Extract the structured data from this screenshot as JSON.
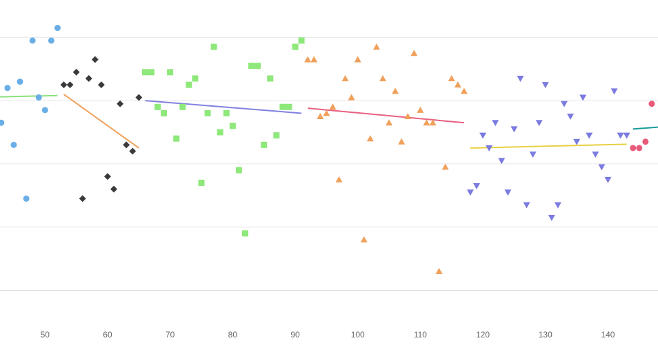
{
  "chart_data": {
    "type": "scatter",
    "title": "",
    "xlabel": "",
    "ylabel": "",
    "xlim": [
      42.8,
      148
    ],
    "ylim": [
      -55,
      445
    ],
    "x_ticks": [
      "50",
      "60",
      "70",
      "80",
      "90",
      "100",
      "110",
      "120",
      "130",
      "140"
    ],
    "y_gridlines": [
      0,
      100,
      200,
      300,
      400
    ],
    "grid": true,
    "legend": "none",
    "series": [
      {
        "shape": "circle",
        "color": "#6aaee8",
        "points": [
          [
            43,
            265
          ],
          [
            44,
            320
          ],
          [
            45,
            230
          ],
          [
            46,
            330
          ],
          [
            47,
            145
          ],
          [
            48,
            395
          ],
          [
            49,
            305
          ],
          [
            50,
            285
          ],
          [
            51,
            395
          ],
          [
            52,
            415
          ]
        ],
        "trend": {
          "color": "#8be07a",
          "from": [
            42.8,
            306
          ],
          "to": [
            52,
            308
          ]
        }
      },
      {
        "shape": "diamond",
        "color": "#3a3a3a",
        "points": [
          [
            53,
            325
          ],
          [
            54,
            325
          ],
          [
            55,
            345
          ],
          [
            56,
            145
          ],
          [
            57,
            335
          ],
          [
            58,
            365
          ],
          [
            59,
            325
          ],
          [
            60,
            180
          ],
          [
            61,
            160
          ],
          [
            62,
            295
          ],
          [
            63,
            230
          ],
          [
            64,
            220
          ],
          [
            65,
            305
          ]
        ],
        "trend": {
          "color": "#f0a05a",
          "from": [
            53,
            310
          ],
          "to": [
            65,
            225
          ]
        }
      },
      {
        "shape": "square",
        "color": "#8ee87a",
        "points": [
          [
            66,
            345
          ],
          [
            67,
            345
          ],
          [
            68,
            290
          ],
          [
            69,
            280
          ],
          [
            70,
            345
          ],
          [
            71,
            240
          ],
          [
            72,
            290
          ],
          [
            73,
            325
          ],
          [
            74,
            335
          ],
          [
            75,
            170
          ],
          [
            76,
            280
          ],
          [
            77,
            385
          ],
          [
            78,
            250
          ],
          [
            79,
            280
          ],
          [
            80,
            260
          ],
          [
            81,
            190
          ],
          [
            82,
            90
          ],
          [
            83,
            355
          ],
          [
            84,
            355
          ],
          [
            85,
            230
          ],
          [
            86,
            335
          ],
          [
            87,
            245
          ],
          [
            88,
            290
          ],
          [
            89,
            290
          ],
          [
            90,
            385
          ],
          [
            91,
            395
          ]
        ],
        "trend": {
          "color": "#8080e0",
          "from": [
            66,
            300
          ],
          "to": [
            91,
            280
          ]
        }
      },
      {
        "shape": "triangle-up",
        "color": "#f0a05a",
        "points": [
          [
            92,
            365
          ],
          [
            93,
            365
          ],
          [
            94,
            275
          ],
          [
            95,
            280
          ],
          [
            96,
            290
          ],
          [
            97,
            175
          ],
          [
            98,
            335
          ],
          [
            99,
            305
          ],
          [
            100,
            365
          ],
          [
            101,
            80
          ],
          [
            102,
            240
          ],
          [
            103,
            385
          ],
          [
            104,
            335
          ],
          [
            105,
            265
          ],
          [
            106,
            315
          ],
          [
            107,
            235
          ],
          [
            108,
            275
          ],
          [
            109,
            375
          ],
          [
            110,
            285
          ],
          [
            111,
            265
          ],
          [
            112,
            265
          ],
          [
            113,
            30
          ],
          [
            114,
            195
          ],
          [
            115,
            335
          ],
          [
            116,
            325
          ],
          [
            117,
            315
          ]
        ],
        "trend": {
          "color": "#e86080",
          "from": [
            92,
            288
          ],
          "to": [
            117,
            265
          ]
        }
      },
      {
        "shape": "triangle-down",
        "color": "#7b7be0",
        "points": [
          [
            118,
            155
          ],
          [
            119,
            165
          ],
          [
            120,
            245
          ],
          [
            121,
            225
          ],
          [
            122,
            265
          ],
          [
            123,
            205
          ],
          [
            124,
            155
          ],
          [
            125,
            255
          ],
          [
            126,
            335
          ],
          [
            127,
            135
          ],
          [
            128,
            215
          ],
          [
            129,
            265
          ],
          [
            130,
            325
          ],
          [
            131,
            115
          ],
          [
            132,
            135
          ],
          [
            133,
            295
          ],
          [
            134,
            275
          ],
          [
            135,
            235
          ],
          [
            136,
            305
          ],
          [
            137,
            245
          ],
          [
            138,
            215
          ],
          [
            139,
            195
          ],
          [
            140,
            175
          ],
          [
            141,
            315
          ],
          [
            142,
            245
          ],
          [
            143,
            245
          ]
        ],
        "trend": {
          "color": "#e8d040",
          "from": [
            118,
            225
          ],
          "to": [
            143,
            231
          ]
        }
      },
      {
        "shape": "circle",
        "color": "#e85a7a",
        "points": [
          [
            144,
            225
          ],
          [
            145,
            225
          ],
          [
            146,
            235
          ],
          [
            147,
            295
          ]
        ],
        "trend": {
          "color": "#1a9a9a",
          "from": [
            144,
            255
          ],
          "to": [
            148,
            258
          ]
        }
      }
    ]
  }
}
